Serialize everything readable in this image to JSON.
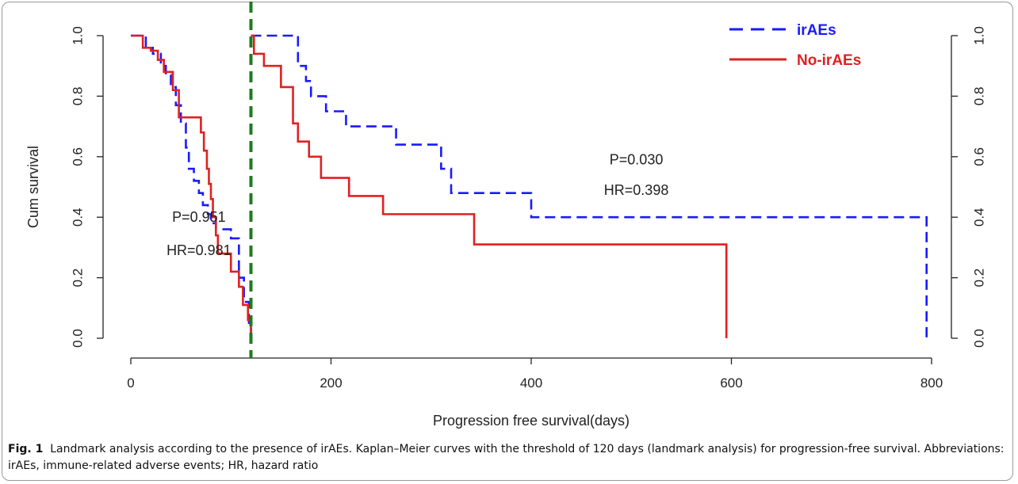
{
  "chart_data": {
    "type": "line",
    "step": true,
    "xlabel": "Progression free survival(days)",
    "ylabel": "Cum survival",
    "xlim": [
      0,
      800
    ],
    "ylim": [
      0,
      1
    ],
    "xticks": [
      "0",
      "200",
      "400",
      "600",
      "800"
    ],
    "yticks": [
      "0.0",
      "0.2",
      "0.4",
      "0.6",
      "0.8",
      "1.0"
    ],
    "landmark_day": 120,
    "legend_position": "top-right",
    "grid": false,
    "series": [
      {
        "name": "irAEs",
        "color": "#1a1aff",
        "dash": "dashed",
        "segments": [
          {
            "x": [
              0,
              15,
              22,
              30,
              35,
              40,
              45,
              50,
              55,
              58,
              63,
              68,
              72,
              77,
              80,
              85,
              92,
              100,
              108,
              113,
              118,
              120
            ],
            "y": [
              1.0,
              0.96,
              0.94,
              0.9,
              0.87,
              0.83,
              0.77,
              0.71,
              0.63,
              0.56,
              0.52,
              0.48,
              0.44,
              0.41,
              0.38,
              0.36,
              0.36,
              0.33,
              0.2,
              0.12,
              0.04,
              0.0
            ]
          },
          {
            "x": [
              120,
              167,
              175,
              180,
              195,
              215,
              265,
              310,
              320,
              400,
              790,
              795
            ],
            "y": [
              1.0,
              0.9,
              0.85,
              0.8,
              0.75,
              0.7,
              0.64,
              0.56,
              0.48,
              0.4,
              0.4,
              0.0
            ]
          }
        ]
      },
      {
        "name": "No-irAEs",
        "color": "#e02020",
        "dash": "solid",
        "segments": [
          {
            "x": [
              0,
              12,
              20,
              27,
              33,
              42,
              48,
              70,
              73,
              76,
              78,
              80,
              82,
              85,
              87,
              100,
              108,
              112,
              117,
              120
            ],
            "y": [
              1.0,
              0.96,
              0.95,
              0.92,
              0.88,
              0.82,
              0.73,
              0.68,
              0.62,
              0.56,
              0.51,
              0.46,
              0.4,
              0.34,
              0.28,
              0.22,
              0.17,
              0.11,
              0.06,
              0.0
            ]
          },
          {
            "x": [
              120,
              123,
              133,
              150,
              162,
              167,
              178,
              190,
              218,
              252,
              343,
              595
            ],
            "y": [
              1.0,
              0.94,
              0.9,
              0.83,
              0.71,
              0.65,
              0.6,
              0.53,
              0.47,
              0.41,
              0.31,
              0.2
            ]
          }
        ],
        "drop_at_end": true
      }
    ],
    "annotations": [
      {
        "text": "P=0.951",
        "x": 68,
        "y": 0.4
      },
      {
        "text": "HR=0.981",
        "x": 68,
        "y": 0.29
      },
      {
        "text": "P=0.030",
        "x": 505,
        "y": 0.59
      },
      {
        "text": "HR=0.398",
        "x": 505,
        "y": 0.49
      }
    ]
  },
  "caption": {
    "label": "Fig. 1",
    "text": "Landmark analysis according to the presence of irAEs. Kaplan–Meier curves with the threshold of 120 days (landmark analysis) for progression-free survival. Abbreviations: irAEs, immune-related adverse events; HR, hazard ratio"
  },
  "colors": {
    "landmark_line": "#1e7a1e",
    "axis": "#222222"
  }
}
